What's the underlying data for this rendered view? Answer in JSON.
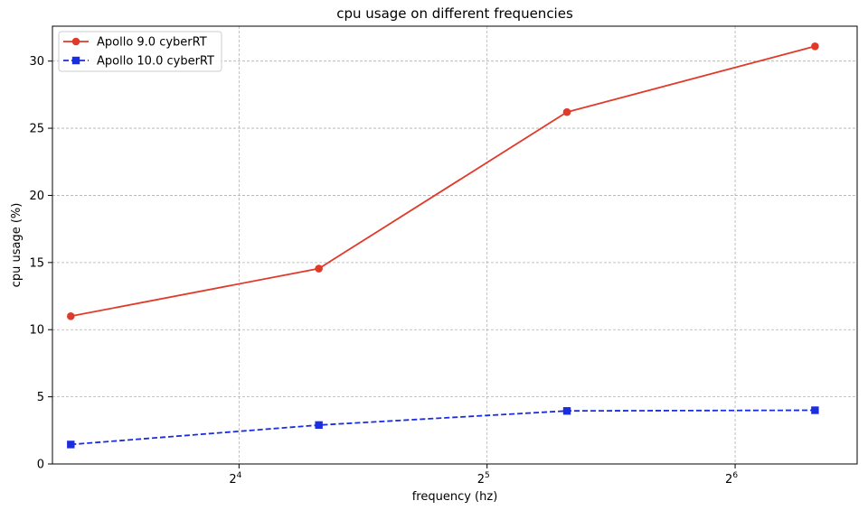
{
  "chart_data": {
    "type": "line",
    "title": "cpu usage on different frequencies",
    "xlabel": "frequency (hz)",
    "ylabel": "cpu usage (%)",
    "x_scale": "log2",
    "xlim": [
      9.5,
      90
    ],
    "ylim": [
      0,
      32.6
    ],
    "xticks": [
      16,
      32,
      64
    ],
    "xtick_labels": [
      {
        "base": "2",
        "exp": "4"
      },
      {
        "base": "2",
        "exp": "5"
      },
      {
        "base": "2",
        "exp": "6"
      }
    ],
    "yticks": [
      0,
      5,
      10,
      15,
      20,
      25,
      30
    ],
    "grid": true,
    "legend": "top-left",
    "x": [
      10,
      20,
      40,
      80
    ],
    "series": [
      {
        "name": "Apollo 9.0 cyberRT",
        "values": [
          11.0,
          14.55,
          26.2,
          31.1
        ],
        "color": "#e03a2a",
        "marker": "circle",
        "linestyle": "solid"
      },
      {
        "name": "Apollo 10.0 cyberRT",
        "values": [
          1.45,
          2.9,
          3.95,
          4.0
        ],
        "color": "#1a2de0",
        "marker": "square",
        "linestyle": "dashed"
      }
    ]
  }
}
